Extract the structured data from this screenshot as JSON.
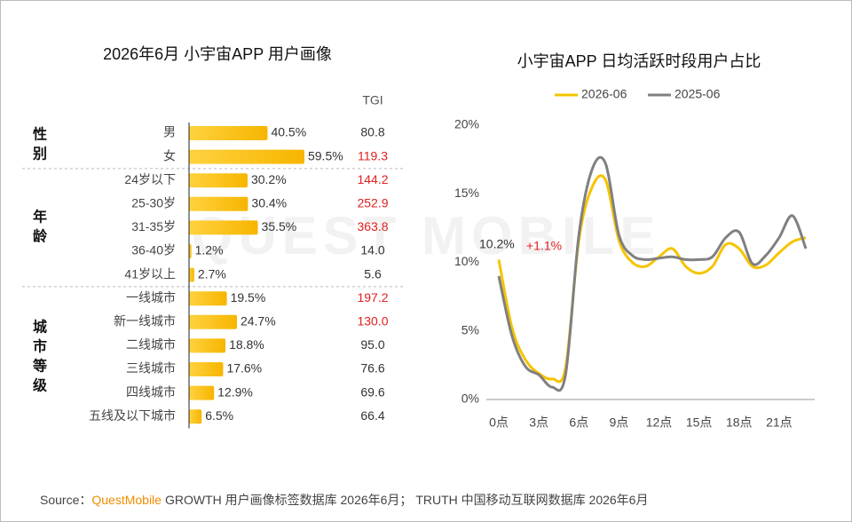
{
  "watermark": "QUEST MOBILE",
  "source_label": "Source：",
  "source_brand": "QuestMobile",
  "source_text": "GROWTH 用户画像标签数据库 2026年6月； TRUTH 中国移动互联网数据库 2026年6月",
  "chart_data": [
    {
      "type": "grouped-hbar",
      "title": "2026年6月 小宇宙APP 用户画像",
      "color": "#f7b500",
      "xlim": [
        0,
        65
      ],
      "tgi_label": "TGI",
      "tgi_highlight_above": 100,
      "tgi_highlight_color": "#e02020",
      "groups": [
        {
          "name": "性别",
          "categories": [
            "男",
            "女"
          ],
          "values": [
            40.5,
            59.5
          ],
          "value_labels": [
            "40.5%",
            "59.5%"
          ],
          "tgi": [
            80.8,
            119.3
          ],
          "tgi_labels": [
            "80.8",
            "119.3"
          ]
        },
        {
          "name": "年龄",
          "categories": [
            "24岁以下",
            "25-30岁",
            "31-35岁",
            "36-40岁",
            "41岁以上"
          ],
          "values": [
            30.2,
            30.4,
            35.5,
            1.2,
            2.7
          ],
          "value_labels": [
            "30.2%",
            "30.4%",
            "35.5%",
            "1.2%",
            "2.7%"
          ],
          "tgi": [
            144.2,
            252.9,
            363.8,
            14.0,
            5.6
          ],
          "tgi_labels": [
            "144.2",
            "252.9",
            "363.8",
            "14.0",
            "5.6"
          ]
        },
        {
          "name": "城市等级",
          "categories": [
            "一线城市",
            "新一线城市",
            "二线城市",
            "三线城市",
            "四线城市",
            "五线及以下城市"
          ],
          "values": [
            19.5,
            24.7,
            18.8,
            17.6,
            12.9,
            6.5
          ],
          "value_labels": [
            "19.5%",
            "24.7%",
            "18.8%",
            "17.6%",
            "12.9%",
            "6.5%"
          ],
          "tgi": [
            197.2,
            130.0,
            95.0,
            76.6,
            69.6,
            66.4
          ],
          "tgi_labels": [
            "197.2",
            "130.0",
            "95.0",
            "76.6",
            "69.6",
            "66.4"
          ]
        }
      ]
    },
    {
      "type": "line",
      "title": "小宇宙APP 日均活跃时段用户占比",
      "x": [
        0,
        1,
        2,
        3,
        4,
        5,
        6,
        7,
        8,
        9,
        10,
        11,
        12,
        13,
        14,
        15,
        16,
        17,
        18,
        19,
        20,
        21,
        22,
        23
      ],
      "xlim": [
        0,
        23
      ],
      "xticks": [
        {
          "value": 0,
          "label": "0点"
        },
        {
          "value": 3,
          "label": "3点"
        },
        {
          "value": 6,
          "label": "6点"
        },
        {
          "value": 9,
          "label": "9点"
        },
        {
          "value": 12,
          "label": "12点"
        },
        {
          "value": 15,
          "label": "15点"
        },
        {
          "value": 18,
          "label": "18点"
        },
        {
          "value": 21,
          "label": "21点"
        }
      ],
      "ylim": [
        0,
        20
      ],
      "yticks": [
        {
          "value": 0,
          "label": "0%"
        },
        {
          "value": 5,
          "label": "5%"
        },
        {
          "value": 10,
          "label": "10%"
        },
        {
          "value": 15,
          "label": "15%"
        },
        {
          "value": 20,
          "label": "20%"
        }
      ],
      "legend": "top",
      "series": [
        {
          "name": "2026-06",
          "color": "#f5c400",
          "values": [
            10.2,
            5.2,
            2.9,
            1.9,
            1.5,
            2.3,
            11.6,
            15.5,
            16.0,
            11.6,
            10.0,
            9.7,
            10.4,
            11.0,
            9.7,
            9.2,
            9.7,
            11.3,
            11.0,
            9.7,
            9.8,
            10.7,
            11.5,
            11.8
          ]
        },
        {
          "name": "2025-06",
          "color": "#808080",
          "values": [
            9.0,
            4.6,
            2.4,
            1.8,
            0.9,
            1.8,
            12.0,
            16.8,
            17.2,
            12.0,
            10.5,
            10.2,
            10.3,
            10.4,
            10.2,
            10.2,
            10.4,
            11.8,
            12.2,
            9.9,
            10.5,
            11.8,
            13.4,
            11.0
          ]
        }
      ],
      "annotations": [
        {
          "text": "10.2%"
        },
        {
          "text": "+1.1%",
          "color": "#e02020"
        }
      ]
    }
  ]
}
